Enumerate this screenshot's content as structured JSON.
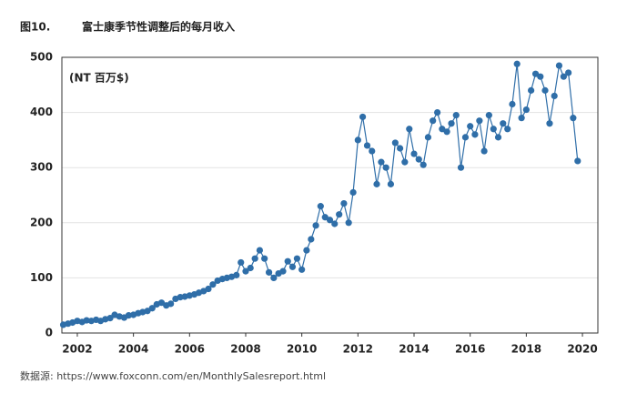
{
  "chart_data": {
    "type": "line",
    "figure_label": "图10.",
    "title": "富士康季节性调整后的每月收入",
    "annotation": "(NT 百万$)",
    "source": "数据源: https://www.foxconn.com/en/MonthlySalesreport.html",
    "x": [
      2001.5,
      2001.67,
      2001.83,
      2002,
      2002.17,
      2002.33,
      2002.5,
      2002.67,
      2002.83,
      2003,
      2003.17,
      2003.33,
      2003.5,
      2003.67,
      2003.83,
      2004,
      2004.17,
      2004.33,
      2004.5,
      2004.67,
      2004.83,
      2005,
      2005.17,
      2005.33,
      2005.5,
      2005.67,
      2005.83,
      2006,
      2006.17,
      2006.33,
      2006.5,
      2006.67,
      2006.83,
      2007,
      2007.17,
      2007.33,
      2007.5,
      2007.67,
      2007.83,
      2008,
      2008.17,
      2008.33,
      2008.5,
      2008.67,
      2008.83,
      2009,
      2009.17,
      2009.33,
      2009.5,
      2009.67,
      2009.83,
      2010,
      2010.17,
      2010.33,
      2010.5,
      2010.67,
      2010.83,
      2011,
      2011.17,
      2011.33,
      2011.5,
      2011.67,
      2011.83,
      2012,
      2012.17,
      2012.33,
      2012.5,
      2012.67,
      2012.83,
      2013,
      2013.17,
      2013.33,
      2013.5,
      2013.67,
      2013.83,
      2014,
      2014.17,
      2014.33,
      2014.5,
      2014.67,
      2014.83,
      2015,
      2015.17,
      2015.33,
      2015.5,
      2015.67,
      2015.83,
      2016,
      2016.17,
      2016.33,
      2016.5,
      2016.67,
      2016.83,
      2017,
      2017.17,
      2017.33,
      2017.5,
      2017.67,
      2017.83,
      2018,
      2018.17,
      2018.33,
      2018.5,
      2018.67,
      2018.83,
      2019,
      2019.17,
      2019.33,
      2019.5,
      2019.67,
      2019.83
    ],
    "series": [
      {
        "name": "Monthly revenue",
        "color": "#2f6ea8",
        "values": [
          15,
          17,
          19,
          22,
          20,
          23,
          22,
          24,
          22,
          25,
          27,
          33,
          30,
          28,
          32,
          33,
          36,
          38,
          40,
          45,
          52,
          55,
          50,
          53,
          62,
          65,
          66,
          68,
          70,
          73,
          76,
          80,
          88,
          95,
          98,
          100,
          102,
          105,
          128,
          112,
          118,
          135,
          150,
          135,
          110,
          100,
          108,
          112,
          130,
          120,
          135,
          115,
          150,
          170,
          195,
          230,
          210,
          205,
          198,
          215,
          235,
          200,
          255,
          350,
          392,
          340,
          330,
          270,
          310,
          300,
          270,
          345,
          335,
          310,
          370,
          325,
          315,
          305,
          355,
          385,
          400,
          370,
          365,
          380,
          395,
          300,
          355,
          375,
          360,
          385,
          330,
          395,
          370,
          355,
          380,
          370,
          415,
          488,
          390,
          405,
          440,
          470,
          465,
          440,
          380,
          430,
          485,
          465,
          472,
          390,
          312
        ]
      }
    ],
    "xlim": [
      2001.45,
      2020.55
    ],
    "xticks": [
      2002,
      2004,
      2006,
      2008,
      2010,
      2012,
      2014,
      2016,
      2018,
      2020
    ],
    "ylim": [
      0,
      500
    ],
    "yticks": [
      0,
      100,
      200,
      300,
      400,
      500
    ],
    "grid": true
  }
}
